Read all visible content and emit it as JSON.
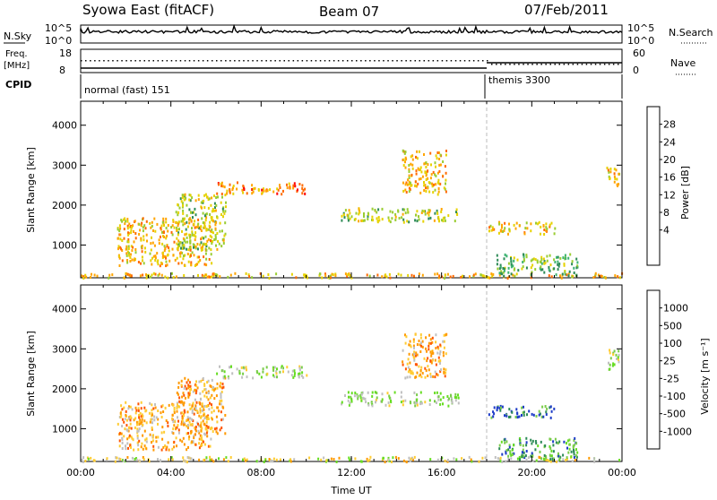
{
  "header": {
    "station": "Syowa East (fitACF)",
    "beam": "Beam 07",
    "date": "07/Feb/2011"
  },
  "top_panels": {
    "nsky_label": "N.Sky",
    "nsky_ticks": [
      "10^5",
      "10^0"
    ],
    "nsearch_label": "N.Search",
    "nsearch_ticks": [
      "10^5",
      "10^0"
    ],
    "freq_label_1": "Freq.",
    "freq_label_2": "[MHz]",
    "freq_ticks": [
      "18",
      "8"
    ],
    "nave_label": "Nave",
    "nave_ticks": [
      "60",
      "0"
    ],
    "cpid_label": "CPID",
    "cpid_modes": [
      {
        "name": "normal (fast) 151",
        "start_hour": 0
      },
      {
        "name": "themis 3300",
        "start_hour": 18
      }
    ]
  },
  "chart_data": [
    {
      "type": "heatmap",
      "name": "power-panel",
      "ylabel": "Slant Range [km]",
      "xlabel": "",
      "ylim": [
        180,
        4600
      ],
      "xlim_hours": [
        0,
        24
      ],
      "y_ticks": [
        "4000",
        "3000",
        "2000",
        "1000"
      ],
      "colorbar_label": "Power [dB]",
      "colorbar_ticks": [
        "28",
        "24",
        "20",
        "16",
        "12",
        "8",
        "4"
      ],
      "colorbar_colors": [
        "#ff0000",
        "#ff6a00",
        "#ffa500",
        "#e6d200",
        "#9acd32",
        "#2e8b57",
        "#3cb371",
        "#1e6eb4",
        "#0000ff"
      ],
      "echo_regions": [
        {
          "t0": 0.0,
          "t1": 24.0,
          "r0": 200,
          "r1": 320,
          "level": 3
        },
        {
          "t0": 1.6,
          "t1": 5.8,
          "r0": 500,
          "r1": 1700,
          "level": 3
        },
        {
          "t0": 4.2,
          "t1": 6.4,
          "r0": 900,
          "r1": 2300,
          "level": 4
        },
        {
          "t0": 6.0,
          "t1": 10.0,
          "r0": 2300,
          "r1": 2600,
          "level": 2
        },
        {
          "t0": 11.5,
          "t1": 16.8,
          "r0": 1600,
          "r1": 1950,
          "level": 4
        },
        {
          "t0": 14.2,
          "t1": 16.2,
          "r0": 2300,
          "r1": 3400,
          "level": 3
        },
        {
          "t0": 18.0,
          "t1": 21.0,
          "r0": 1300,
          "r1": 1600,
          "level": 3
        },
        {
          "t0": 18.4,
          "t1": 22.0,
          "r0": 250,
          "r1": 800,
          "level": 5
        },
        {
          "t0": 23.3,
          "t1": 23.9,
          "r0": 2500,
          "r1": 3000,
          "level": 3
        }
      ]
    },
    {
      "type": "heatmap",
      "name": "velocity-panel",
      "ylabel": "Slant Range [km]",
      "xlabel": "Time UT",
      "ylim": [
        180,
        4600
      ],
      "xlim_hours": [
        0,
        24
      ],
      "y_ticks": [
        "4000",
        "3000",
        "2000",
        "1000"
      ],
      "x_ticks": [
        "00:00",
        "04:00",
        "08:00",
        "12:00",
        "16:00",
        "20:00",
        "00:00"
      ],
      "colorbar_label": "Velocity [m s⁻¹]",
      "colorbar_ticks": [
        "1000",
        "500",
        "100",
        "25",
        "-25",
        "-100",
        "-500",
        "-1000"
      ],
      "colorbar_colors": [
        "#1e3cc8",
        "#2e8b57",
        "#7acc4a",
        "#66dd22",
        "#c0c0c0",
        "#ffcc33",
        "#ff9900",
        "#ff5500",
        "#ff0000"
      ],
      "echo_regions": [
        {
          "t0": 0.0,
          "t1": 24.0,
          "r0": 200,
          "r1": 320,
          "level": 5
        },
        {
          "t0": 1.6,
          "t1": 5.8,
          "r0": 500,
          "r1": 1700,
          "level": 6
        },
        {
          "t0": 4.2,
          "t1": 6.4,
          "r0": 900,
          "r1": 2300,
          "level": 6
        },
        {
          "t0": 6.0,
          "t1": 10.0,
          "r0": 2300,
          "r1": 2600,
          "level": 4
        },
        {
          "t0": 11.5,
          "t1": 16.8,
          "r0": 1600,
          "r1": 1950,
          "level": 4
        },
        {
          "t0": 14.2,
          "t1": 16.2,
          "r0": 2300,
          "r1": 3400,
          "level": 6
        },
        {
          "t0": 18.0,
          "t1": 21.0,
          "r0": 1300,
          "r1": 1600,
          "level": 1
        },
        {
          "t0": 18.4,
          "t1": 22.0,
          "r0": 250,
          "r1": 800,
          "level": 2
        },
        {
          "t0": 23.3,
          "t1": 23.9,
          "r0": 2500,
          "r1": 3000,
          "level": 4
        }
      ]
    }
  ]
}
